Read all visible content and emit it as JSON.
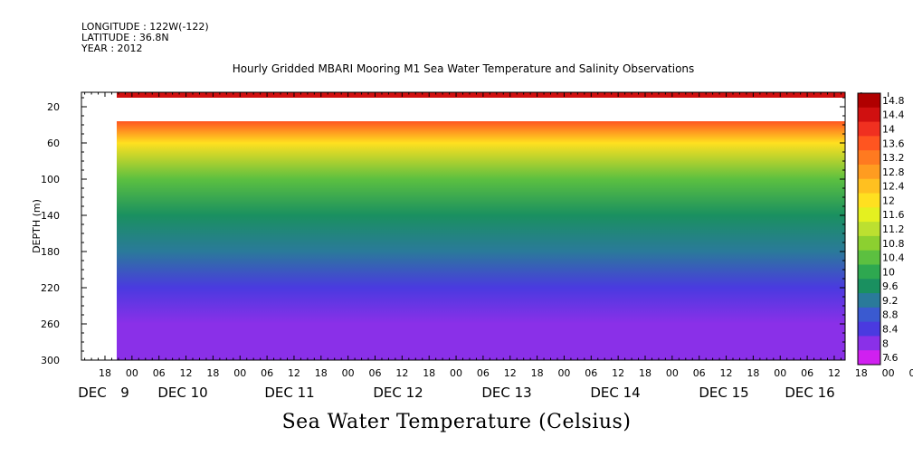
{
  "header": {
    "longitude": "LONGITUDE : 122W(-122)",
    "latitude": "LATITUDE : 36.8N",
    "year": "YEAR : 2012"
  },
  "chart_data": {
    "type": "heatmap",
    "title": "Hourly Gridded MBARI Mooring M1 Sea Water Temperature and Salinity Observations",
    "xlabel": "Sea Water Temperature (Celsius)",
    "ylabel": "DEPTH (m)",
    "y_ticks": [
      20,
      60,
      100,
      140,
      180,
      220,
      260,
      300
    ],
    "ylim": [
      300,
      4
    ],
    "x_hour_ticks": [
      "18",
      "00",
      "06",
      "12",
      "18",
      "00",
      "06",
      "12",
      "18",
      "00",
      "06",
      "12",
      "18",
      "00",
      "06",
      "12",
      "18",
      "00",
      "06",
      "12",
      "18",
      "00",
      "06",
      "12",
      "18",
      "00",
      "06",
      "12",
      "18",
      "00",
      "06",
      "12"
    ],
    "x_day_labels": [
      "DEC",
      "9",
      "DEC 10",
      "DEC 11",
      "DEC 12",
      "DEC 13",
      "DEC 14",
      "DEC 15",
      "DEC 16"
    ],
    "colorbar": {
      "levels": [
        "14.8",
        "14.4",
        "14",
        "13.6",
        "13.2",
        "12.8",
        "12.4",
        "12",
        "11.6",
        "11.2",
        "10.8",
        "10.4",
        "10",
        "9.6",
        "9.2",
        "8.8",
        "8.4",
        "8",
        "7.6"
      ],
      "colors": [
        "#b00000",
        "#d01010",
        "#f03020",
        "#ff5520",
        "#ff7a20",
        "#ff9c20",
        "#ffc020",
        "#ffe020",
        "#e4f020",
        "#bce030",
        "#8cd030",
        "#5cc040",
        "#2ea850",
        "#1a9060",
        "#2a7a9a",
        "#3a5ad0",
        "#4a3ae0",
        "#8a30e8",
        "#d020f0"
      ]
    },
    "surface_layer_temp_range": [
      14.0,
      14.8
    ],
    "surface_layer_depth_range": [
      4,
      10
    ],
    "missing_depth_range": [
      10,
      36
    ],
    "profile": [
      {
        "depth": 36,
        "temp": 13.4
      },
      {
        "depth": 60,
        "temp": 12.2
      },
      {
        "depth": 100,
        "temp": 10.6
      },
      {
        "depth": 140,
        "temp": 9.6
      },
      {
        "depth": 180,
        "temp": 9.0
      },
      {
        "depth": 220,
        "temp": 8.6
      },
      {
        "depth": 260,
        "temp": 8.2
      },
      {
        "depth": 300,
        "temp": 7.8
      }
    ]
  }
}
